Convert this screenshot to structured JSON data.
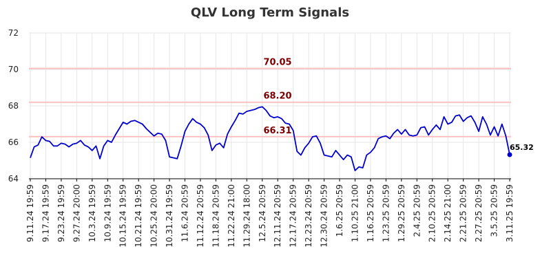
{
  "title": "QLV Long Term Signals",
  "colors": {
    "line": "#0000cc",
    "reference_line": "#ffc0c0",
    "reference_label": "#7a0000",
    "grid": "#e6e6e6",
    "axis": "#000000"
  },
  "chart_data": {
    "type": "line",
    "title": "QLV Long Term Signals",
    "xlabel": "",
    "ylabel": "",
    "ylim": [
      64,
      72
    ],
    "yticks": [
      64,
      66,
      68,
      70,
      72
    ],
    "grid": true,
    "x_tick_labels": [
      "9.11.24 19:59",
      "9.17.24 19:59",
      "9.23.24 19:59",
      "9.27.24 20:00",
      "10.3.24 19:59",
      "10.9.24 19:59",
      "10.15.24 19:59",
      "10.21.24 19:59",
      "10.25.24 20:00",
      "10.31.24 19:59",
      "11.6.24 20:59",
      "11.12.24 20:59",
      "11.18.24 20:59",
      "11.22.24 21:00",
      "11.29.24 18:00",
      "12.5.24 20:59",
      "12.11.24 20:59",
      "12.17.24 20:59",
      "12.23.24 20:59",
      "12.30.24 20:59",
      "1.6.25 20:59",
      "1.10.25 21:00",
      "1.16.25 20:59",
      "1.23.25 20:59",
      "1.29.25 20:59",
      "2.4.25 20:59",
      "2.10.25 20:59",
      "2.14.25 21:00",
      "2.21.25 20:59",
      "2.27.25 20:59",
      "3.5.25 20:59",
      "3.11.25 19:59"
    ],
    "reference_lines": [
      {
        "value": 70.05,
        "label": "70.05"
      },
      {
        "value": 68.2,
        "label": "68.20"
      },
      {
        "value": 66.31,
        "label": "66.31"
      }
    ],
    "series": [
      {
        "values": [
          65.15,
          65.75,
          65.85,
          66.3,
          66.1,
          66.05,
          65.8,
          65.8,
          65.95,
          65.9,
          65.75,
          65.9,
          65.95,
          66.1,
          65.85,
          65.75,
          65.55,
          65.8,
          65.1,
          65.8,
          66.1,
          66.0,
          66.4,
          66.75,
          67.1,
          67.0,
          67.15,
          67.2,
          67.1,
          67.0,
          66.75,
          66.55,
          66.35,
          66.5,
          66.45,
          66.1,
          65.2,
          65.15,
          65.1,
          65.8,
          66.6,
          67.0,
          67.3,
          67.1,
          67.0,
          66.8,
          66.4,
          65.55,
          65.85,
          65.95,
          65.7,
          66.45,
          66.85,
          67.2,
          67.6,
          67.55,
          67.7,
          67.75,
          67.8,
          67.9,
          67.95,
          67.75,
          67.45,
          67.35,
          67.4,
          67.3,
          67.05,
          67.0,
          66.65,
          65.5,
          65.3,
          65.7,
          65.95,
          66.3,
          66.35,
          65.95,
          65.3,
          65.25,
          65.2,
          65.55,
          65.3,
          65.05,
          65.3,
          65.2,
          64.45,
          64.65,
          64.6,
          65.3,
          65.45,
          65.7,
          66.2,
          66.3,
          66.35,
          66.2,
          66.5,
          66.7,
          66.45,
          66.7,
          66.4,
          66.35,
          66.4,
          66.8,
          66.85,
          66.4,
          66.7,
          66.95,
          66.7,
          67.4,
          67.0,
          67.1,
          67.45,
          67.5,
          67.15,
          67.35,
          67.45,
          67.1,
          66.6,
          67.4,
          67.0,
          66.4,
          66.85,
          66.35,
          67.0,
          66.35,
          65.32
        ],
        "last_label": "65.32"
      }
    ]
  }
}
